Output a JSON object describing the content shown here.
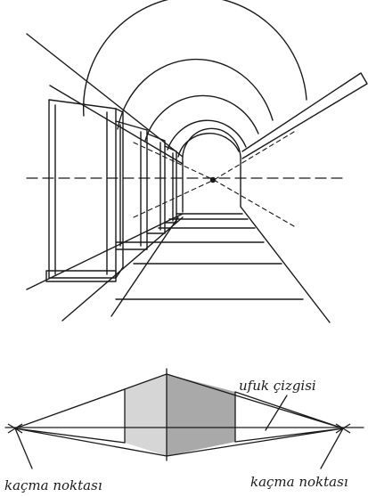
{
  "labels": {
    "horizon_line": "ufuk çizgisi",
    "vanishing_point_left": "kaçma noktası",
    "vanishing_point_right": "kaçma noktası"
  },
  "colors": {
    "ink": "#1a1a1a",
    "light_face": "#d6d6d6",
    "dark_face": "#a9a9a9"
  }
}
